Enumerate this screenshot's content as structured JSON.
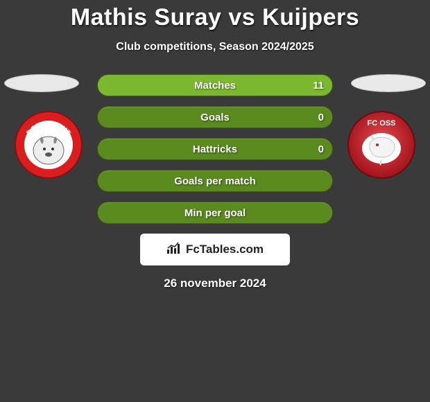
{
  "title": "Mathis Suray vs Kuijpers",
  "subtitle": "Club competitions, Season 2024/2025",
  "colors": {
    "background": "#3a3a3a",
    "pill_bg": "#5b8a1f",
    "pill_fill": "#7bb82f",
    "text": "#ffffff",
    "footer_bg": "#ffffff"
  },
  "stats": [
    {
      "label": "Matches",
      "value_right": "11",
      "fill_pct": 100
    },
    {
      "label": "Goals",
      "value_right": "0",
      "fill_pct": 0
    },
    {
      "label": "Hattricks",
      "value_right": "0",
      "fill_pct": 0
    },
    {
      "label": "Goals per match",
      "value_right": "",
      "fill_pct": 0
    },
    {
      "label": "Min per goal",
      "value_right": "",
      "fill_pct": 0
    }
  ],
  "badges": {
    "left": {
      "name": "FC Dordrecht",
      "ring_color": "#d81e1e",
      "inner_color": "#ffffff",
      "text": "DORDRECHT",
      "text_color": "#ffffff"
    },
    "right": {
      "name": "FC Oss",
      "ring_color": "#c4161c",
      "inner_color": "#ffffff",
      "text": "FC OSS",
      "text_color": "#ffffff"
    }
  },
  "footer": {
    "site": "FcTables.com"
  },
  "date": "26 november 2024"
}
